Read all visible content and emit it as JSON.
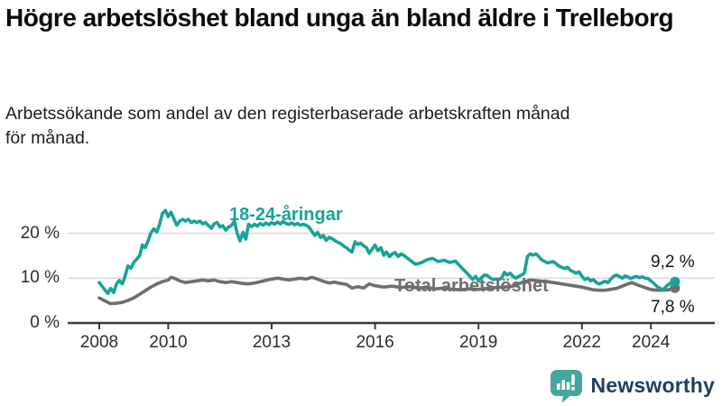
{
  "header": {
    "title": "Högre arbetslöshet bland unga än bland äldre i Trelleborg",
    "subtitle_lines": [
      "Arbetssökande som andel av den registerbaserade arbetskraften månad",
      "för månad."
    ]
  },
  "chart_data": {
    "type": "line",
    "unit": "%",
    "grid": "horizontal",
    "x_range": [
      2008,
      2024.7
    ],
    "y_range": [
      0,
      27
    ],
    "x_ticks": [
      "2008",
      "2010",
      "2013",
      "2016",
      "2019",
      "2022",
      "2024"
    ],
    "y_ticks": [
      {
        "value": 0,
        "label": "0 %"
      },
      {
        "value": 10,
        "label": "10 %"
      },
      {
        "value": 20,
        "label": "20 %"
      }
    ],
    "series": [
      {
        "name": "18-24-åringar",
        "color": "#18a396",
        "end_value": 9.2,
        "end_label": "9,2 %",
        "points": [
          [
            2008,
            9
          ],
          [
            2008.08,
            8.2
          ],
          [
            2008.17,
            7.3
          ],
          [
            2008.25,
            6.6
          ],
          [
            2008.33,
            7.7
          ],
          [
            2008.42,
            6.8
          ],
          [
            2008.5,
            8.7
          ],
          [
            2008.58,
            9.5
          ],
          [
            2008.67,
            8.7
          ],
          [
            2008.75,
            10.5
          ],
          [
            2008.83,
            12.7
          ],
          [
            2008.92,
            12.2
          ],
          [
            2009,
            13.5
          ],
          [
            2009.08,
            14.2
          ],
          [
            2009.17,
            15
          ],
          [
            2009.25,
            17.4
          ],
          [
            2009.33,
            16.8
          ],
          [
            2009.42,
            18.4
          ],
          [
            2009.5,
            20.1
          ],
          [
            2009.58,
            21
          ],
          [
            2009.67,
            20.3
          ],
          [
            2009.75,
            22
          ],
          [
            2009.83,
            24.4
          ],
          [
            2009.92,
            25.1
          ],
          [
            2010,
            23.7
          ],
          [
            2010.08,
            24.7
          ],
          [
            2010.17,
            23.1
          ],
          [
            2010.25,
            21.8
          ],
          [
            2010.33,
            22.7
          ],
          [
            2010.42,
            23.1
          ],
          [
            2010.5,
            22.7
          ],
          [
            2010.58,
            23.1
          ],
          [
            2010.67,
            22.4
          ],
          [
            2010.75,
            22.7
          ],
          [
            2010.83,
            22.4
          ],
          [
            2010.92,
            22.7
          ],
          [
            2011,
            22.1
          ],
          [
            2011.08,
            22.4
          ],
          [
            2011.17,
            21.7
          ],
          [
            2011.25,
            21.1
          ],
          [
            2011.33,
            22.1
          ],
          [
            2011.42,
            22.4
          ],
          [
            2011.5,
            21.4
          ],
          [
            2011.58,
            21.7
          ],
          [
            2011.67,
            20.7
          ],
          [
            2011.75,
            21.4
          ],
          [
            2011.83,
            21.7
          ],
          [
            2011.92,
            22.7
          ],
          [
            2012,
            20
          ],
          [
            2012.08,
            18.3
          ],
          [
            2012.17,
            20.2
          ],
          [
            2012.25,
            18.7
          ],
          [
            2012.33,
            22
          ],
          [
            2012.42,
            21.5
          ],
          [
            2012.5,
            22
          ],
          [
            2012.58,
            21.6
          ],
          [
            2012.67,
            22.2
          ],
          [
            2012.75,
            21.8
          ],
          [
            2012.83,
            22.3
          ],
          [
            2012.92,
            21.9
          ],
          [
            2013,
            22.4
          ],
          [
            2013.08,
            22
          ],
          [
            2013.17,
            22.5
          ],
          [
            2013.25,
            22.1
          ],
          [
            2013.33,
            22.6
          ],
          [
            2013.42,
            22.2
          ],
          [
            2013.5,
            22
          ],
          [
            2013.58,
            22.3
          ],
          [
            2013.67,
            21.9
          ],
          [
            2013.75,
            22.2
          ],
          [
            2013.83,
            21.8
          ],
          [
            2013.92,
            22
          ],
          [
            2014,
            21.8
          ],
          [
            2014.08,
            21.4
          ],
          [
            2014.17,
            20.4
          ],
          [
            2014.25,
            19.5
          ],
          [
            2014.33,
            20.2
          ],
          [
            2014.42,
            19.1
          ],
          [
            2014.5,
            19.5
          ],
          [
            2014.58,
            18.4
          ],
          [
            2014.67,
            19.1
          ],
          [
            2014.75,
            18.8
          ],
          [
            2014.83,
            18.4
          ],
          [
            2014.92,
            18
          ],
          [
            2015,
            17.7
          ],
          [
            2015.08,
            17.2
          ],
          [
            2015.17,
            16.8
          ],
          [
            2015.25,
            16.2
          ],
          [
            2015.33,
            15.8
          ],
          [
            2015.42,
            18.1
          ],
          [
            2015.5,
            17.5
          ],
          [
            2015.58,
            17.8
          ],
          [
            2015.67,
            17.2
          ],
          [
            2015.75,
            16.8
          ],
          [
            2015.83,
            15.5
          ],
          [
            2015.92,
            16.5
          ],
          [
            2016,
            17.4
          ],
          [
            2016.08,
            16.1
          ],
          [
            2016.17,
            16.8
          ],
          [
            2016.25,
            15.1
          ],
          [
            2016.33,
            15.8
          ],
          [
            2016.42,
            14.8
          ],
          [
            2016.5,
            15.4
          ],
          [
            2016.58,
            15.7
          ],
          [
            2016.67,
            14.8
          ],
          [
            2016.75,
            15.4
          ],
          [
            2016.83,
            15.1
          ],
          [
            2017,
            14.1
          ],
          [
            2017.17,
            13.1
          ],
          [
            2017.33,
            13.4
          ],
          [
            2017.5,
            14.1
          ],
          [
            2017.67,
            14.4
          ],
          [
            2017.83,
            13.7
          ],
          [
            2018,
            14
          ],
          [
            2018.17,
            13.5
          ],
          [
            2018.33,
            13.8
          ],
          [
            2018.5,
            12.4
          ],
          [
            2018.67,
            11.1
          ],
          [
            2018.83,
            9.7
          ],
          [
            2018.92,
            10.4
          ],
          [
            2019,
            9.4
          ],
          [
            2019.08,
            10.1
          ],
          [
            2019.17,
            10.7
          ],
          [
            2019.25,
            10.6
          ],
          [
            2019.33,
            10.1
          ],
          [
            2019.42,
            9.7
          ],
          [
            2019.5,
            9.8
          ],
          [
            2019.58,
            9.7
          ],
          [
            2019.67,
            10
          ],
          [
            2019.75,
            11.3
          ],
          [
            2019.83,
            10.7
          ],
          [
            2019.92,
            11.1
          ],
          [
            2020,
            10.4
          ],
          [
            2020.08,
            10
          ],
          [
            2020.17,
            10.4
          ],
          [
            2020.25,
            10.7
          ],
          [
            2020.33,
            11.1
          ],
          [
            2020.42,
            14.8
          ],
          [
            2020.5,
            15.4
          ],
          [
            2020.58,
            15.1
          ],
          [
            2020.67,
            15.4
          ],
          [
            2020.75,
            14.8
          ],
          [
            2020.83,
            14.1
          ],
          [
            2021,
            13.4
          ],
          [
            2021.17,
            13.7
          ],
          [
            2021.33,
            12.7
          ],
          [
            2021.5,
            12.1
          ],
          [
            2021.58,
            12.4
          ],
          [
            2021.67,
            11.7
          ],
          [
            2021.83,
            11.1
          ],
          [
            2021.92,
            11.4
          ],
          [
            2022,
            10.4
          ],
          [
            2022.08,
            9.7
          ],
          [
            2022.17,
            10
          ],
          [
            2022.25,
            9.4
          ],
          [
            2022.33,
            9.7
          ],
          [
            2022.42,
            9
          ],
          [
            2022.5,
            8.7
          ],
          [
            2022.58,
            9
          ],
          [
            2022.67,
            9.3
          ],
          [
            2022.75,
            9
          ],
          [
            2022.83,
            9.7
          ],
          [
            2022.92,
            10.4
          ],
          [
            2023,
            10.7
          ],
          [
            2023.08,
            10.4
          ],
          [
            2023.17,
            10
          ],
          [
            2023.25,
            10.5
          ],
          [
            2023.33,
            10.3
          ],
          [
            2023.42,
            9.9
          ],
          [
            2023.5,
            10.2
          ],
          [
            2023.58,
            10.4
          ],
          [
            2023.67,
            10.1
          ],
          [
            2023.75,
            10.3
          ],
          [
            2023.83,
            10
          ],
          [
            2023.92,
            9.9
          ],
          [
            2024,
            9.4
          ],
          [
            2024.1,
            8.7
          ],
          [
            2024.2,
            8
          ],
          [
            2024.35,
            7.4
          ],
          [
            2024.45,
            8.2
          ],
          [
            2024.55,
            8.8
          ],
          [
            2024.7,
            9.2
          ]
        ]
      },
      {
        "name": "Total arbetslöshet",
        "color": "#6e6e72",
        "end_value": 7.8,
        "end_label": "7,8 %",
        "points": [
          [
            2008,
            5.6
          ],
          [
            2008.17,
            4.9
          ],
          [
            2008.33,
            4.3
          ],
          [
            2008.5,
            4.4
          ],
          [
            2008.67,
            4.6
          ],
          [
            2008.83,
            5
          ],
          [
            2009,
            5.6
          ],
          [
            2009.17,
            6.4
          ],
          [
            2009.33,
            7.2
          ],
          [
            2009.5,
            8
          ],
          [
            2009.67,
            8.7
          ],
          [
            2009.83,
            9.2
          ],
          [
            2010,
            9.6
          ],
          [
            2010.08,
            10.2
          ],
          [
            2010.17,
            10
          ],
          [
            2010.33,
            9.4
          ],
          [
            2010.5,
            9
          ],
          [
            2010.67,
            9.2
          ],
          [
            2010.83,
            9.4
          ],
          [
            2011,
            9.6
          ],
          [
            2011.17,
            9.4
          ],
          [
            2011.33,
            9.6
          ],
          [
            2011.5,
            9.2
          ],
          [
            2011.67,
            9
          ],
          [
            2011.83,
            9.2
          ],
          [
            2012,
            9
          ],
          [
            2012.17,
            8.8
          ],
          [
            2012.33,
            8.7
          ],
          [
            2012.5,
            8.9
          ],
          [
            2012.67,
            9.2
          ],
          [
            2012.83,
            9.5
          ],
          [
            2013,
            9.8
          ],
          [
            2013.17,
            10
          ],
          [
            2013.33,
            9.8
          ],
          [
            2013.5,
            9.6
          ],
          [
            2013.67,
            9.8
          ],
          [
            2013.83,
            10
          ],
          [
            2014,
            9.8
          ],
          [
            2014.17,
            10.2
          ],
          [
            2014.33,
            9.8
          ],
          [
            2014.5,
            9.3
          ],
          [
            2014.67,
            8.9
          ],
          [
            2014.83,
            9.1
          ],
          [
            2015,
            8.8
          ],
          [
            2015.17,
            8.6
          ],
          [
            2015.33,
            7.8
          ],
          [
            2015.5,
            8.1
          ],
          [
            2015.67,
            7.8
          ],
          [
            2015.83,
            8.7
          ],
          [
            2016,
            8.3
          ],
          [
            2016.25,
            8
          ],
          [
            2016.5,
            8.2
          ],
          [
            2016.75,
            7.9
          ],
          [
            2017,
            8.1
          ],
          [
            2017.25,
            7.8
          ],
          [
            2017.5,
            7.9
          ],
          [
            2017.75,
            7.6
          ],
          [
            2018,
            7.8
          ],
          [
            2018.25,
            7.5
          ],
          [
            2018.5,
            7.4
          ],
          [
            2018.75,
            7.6
          ],
          [
            2019,
            7.5
          ],
          [
            2019.25,
            7.7
          ],
          [
            2019.5,
            7.9
          ],
          [
            2019.75,
            8
          ],
          [
            2020,
            8.2
          ],
          [
            2020.25,
            9
          ],
          [
            2020.5,
            9.6
          ],
          [
            2020.75,
            9.4
          ],
          [
            2021,
            9.2
          ],
          [
            2021.25,
            8.9
          ],
          [
            2021.5,
            8.6
          ],
          [
            2021.75,
            8.3
          ],
          [
            2022,
            8
          ],
          [
            2022.17,
            7.7
          ],
          [
            2022.33,
            7.4
          ],
          [
            2022.5,
            7.3
          ],
          [
            2022.67,
            7.3
          ],
          [
            2022.83,
            7.5
          ],
          [
            2023,
            7.7
          ],
          [
            2023.17,
            8.2
          ],
          [
            2023.33,
            8.7
          ],
          [
            2023.45,
            9
          ],
          [
            2023.6,
            8.5
          ],
          [
            2023.75,
            8.1
          ],
          [
            2023.9,
            7.7
          ],
          [
            2024.05,
            7.4
          ],
          [
            2024.2,
            7.3
          ],
          [
            2024.35,
            7.3
          ],
          [
            2024.5,
            7.4
          ],
          [
            2024.7,
            7.8
          ]
        ]
      }
    ]
  },
  "branding": {
    "name": "Newsworthy",
    "icon": "newsworthy-speech-bubble-bar-chart",
    "icon_color": "#44a69f",
    "text_color": "#1f3f60"
  }
}
